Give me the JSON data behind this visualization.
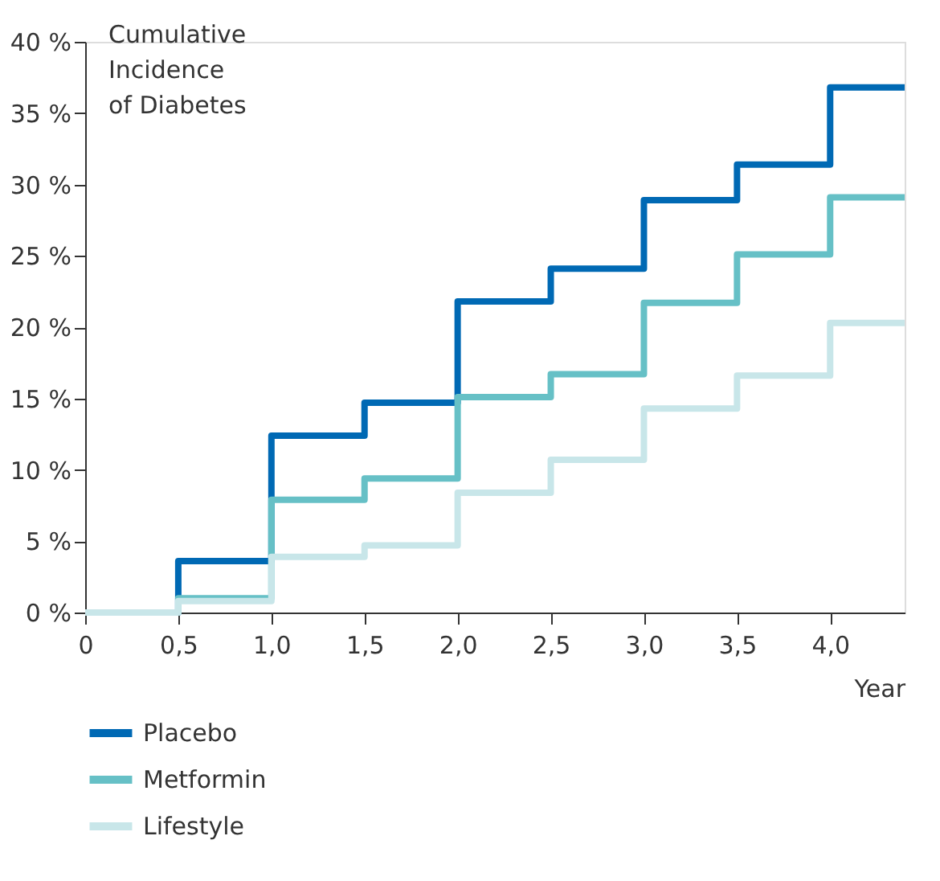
{
  "chart_data": {
    "type": "step",
    "ylabel": "Cumulative Incidence of Diabetes",
    "xlabel": "Year",
    "xlim": [
      0,
      4.4
    ],
    "ylim": [
      0,
      40
    ],
    "xticks": [
      0,
      {
        "value": 0.5,
        "label": "0,5"
      },
      {
        "value": 1,
        "label": "1,0"
      },
      {
        "value": 1.5,
        "label": "1,5"
      },
      {
        "value": 2,
        "label": "2,0"
      },
      {
        "value": 2.5,
        "label": "2,5"
      },
      {
        "value": 3,
        "label": "3,0"
      },
      {
        "value": 3.5,
        "label": "3,5"
      },
      {
        "value": 4,
        "label": "4,0"
      }
    ],
    "yticks": [
      {
        "value": 0,
        "label": "0 %"
      },
      {
        "value": 5,
        "label": "5 %"
      },
      {
        "value": 10,
        "label": "10 %"
      },
      {
        "value": 15,
        "label": "15 %"
      },
      {
        "value": 20,
        "label": "20 %"
      },
      {
        "value": 25,
        "label": "25 %"
      },
      {
        "value": 30,
        "label": "30 %"
      },
      {
        "value": 35,
        "label": "35 %"
      },
      {
        "value": 40,
        "label": "40 %"
      }
    ],
    "x": [
      0,
      0.5,
      1,
      1.5,
      2,
      2.5,
      3,
      3.5,
      4,
      4.4
    ],
    "series": [
      {
        "name": "Placebo",
        "color": "#0069b4",
        "values": [
          0,
          3.6,
          12.4,
          14.7,
          21.8,
          24.1,
          28.9,
          31.4,
          36.8,
          36.8
        ]
      },
      {
        "name": "Metformin",
        "color": "#66c0c6",
        "values": [
          0,
          1.0,
          7.9,
          9.4,
          15.1,
          16.7,
          21.7,
          25.1,
          29.1,
          29.1
        ]
      },
      {
        "name": "Lifestyle",
        "color": "#c8e6e9",
        "values": [
          0,
          0.8,
          3.9,
          4.7,
          8.4,
          10.7,
          14.3,
          16.6,
          20.3,
          20.3
        ]
      }
    ],
    "grid": false,
    "legend": "bottom",
    "line_style": "solid",
    "marker": "none"
  }
}
